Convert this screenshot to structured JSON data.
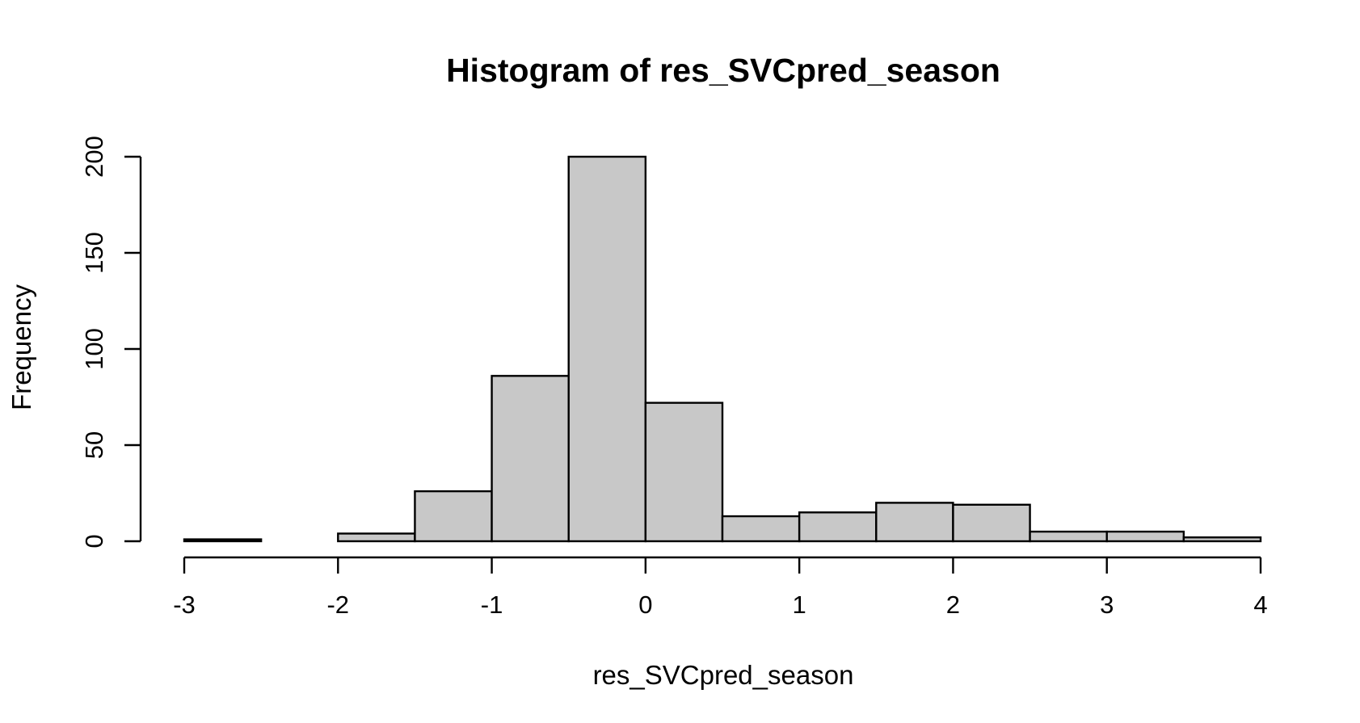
{
  "chart_data": {
    "type": "bar",
    "title": "Histogram of res_SVCpred_season",
    "xlabel": "res_SVCpred_season",
    "ylabel": "Frequency",
    "bin_edges": [
      -3,
      -2.5,
      -2,
      -1.5,
      -1,
      -0.5,
      0,
      0.5,
      1,
      1.5,
      2,
      2.5,
      3,
      3.5,
      4
    ],
    "values": [
      1,
      0,
      4,
      26,
      86,
      200,
      72,
      13,
      15,
      20,
      19,
      5,
      5,
      2
    ],
    "xlim": [
      -3,
      4
    ],
    "ylim": [
      0,
      200
    ],
    "xticks": [
      -3,
      -2,
      -1,
      0,
      1,
      2,
      3,
      4
    ],
    "yticks": [
      0,
      50,
      100,
      150,
      200
    ],
    "bar_color": "#c8c8c8",
    "edge_color": "#000000",
    "grid": false,
    "legend": "none"
  }
}
